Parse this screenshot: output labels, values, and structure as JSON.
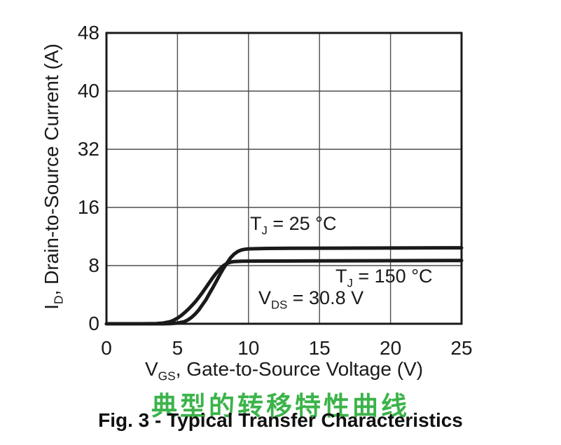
{
  "figure": {
    "caption_cn": "典型的转移特性曲线",
    "caption_en": "Fig. 3 - Typical Transfer Characteristics",
    "caption_cn_color": "#3cb34a"
  },
  "chart_data": {
    "type": "line",
    "title": "",
    "xlabel": {
      "base": "V",
      "sub": "GS",
      "rest": ", Gate-to-Source Voltage (V)"
    },
    "ylabel": {
      "base": "I",
      "sub": "D",
      "rest": ", Drain-to-Source Current (A)"
    },
    "xlim": [
      0,
      25
    ],
    "x_ticks": [
      0,
      5,
      10,
      15,
      20,
      25
    ],
    "y_tick_labels": [
      48,
      40,
      32,
      16,
      8,
      0
    ],
    "y_units_per_row": 8,
    "grid": true,
    "legend_position": "none",
    "line_color": "#1a1a1a",
    "grid_color": "#4d4d4d",
    "annotations": [
      {
        "base": "T",
        "sub": "J",
        "rest": " = 25 °C"
      },
      {
        "base": "T",
        "sub": "J",
        "rest": " = 150 °C"
      },
      {
        "base": "V",
        "sub": "DS",
        "rest": " = 30.8 V"
      }
    ],
    "series": [
      {
        "name": "TJ = 25 °C",
        "points": [
          [
            0,
            0
          ],
          [
            3,
            0
          ],
          [
            4,
            0
          ],
          [
            4.5,
            0.03
          ],
          [
            5,
            0.1
          ],
          [
            5.5,
            0.3
          ],
          [
            5.75,
            0.55
          ],
          [
            6,
            0.9
          ],
          [
            6.25,
            1.35
          ],
          [
            6.5,
            1.9
          ],
          [
            6.75,
            2.6
          ],
          [
            7,
            3.3
          ],
          [
            7.25,
            4.15
          ],
          [
            7.5,
            5.0
          ],
          [
            7.75,
            5.9
          ],
          [
            8,
            6.8
          ],
          [
            8.25,
            7.65
          ],
          [
            8.5,
            8.4
          ],
          [
            8.75,
            9.1
          ],
          [
            9,
            9.6
          ],
          [
            9.25,
            9.95
          ],
          [
            9.5,
            10.15
          ],
          [
            9.75,
            10.25
          ],
          [
            10,
            10.3
          ],
          [
            11,
            10.35
          ],
          [
            13,
            10.38
          ],
          [
            16,
            10.4
          ],
          [
            20,
            10.42
          ],
          [
            25,
            10.45
          ]
        ]
      },
      {
        "name": "TJ = 150 °C",
        "points": [
          [
            0,
            0
          ],
          [
            2.5,
            0
          ],
          [
            3.5,
            0.03
          ],
          [
            4,
            0.1
          ],
          [
            4.5,
            0.3
          ],
          [
            4.75,
            0.5
          ],
          [
            5,
            0.78
          ],
          [
            5.25,
            1.12
          ],
          [
            5.5,
            1.52
          ],
          [
            5.75,
            1.98
          ],
          [
            6,
            2.48
          ],
          [
            6.25,
            3.02
          ],
          [
            6.5,
            3.62
          ],
          [
            6.75,
            4.28
          ],
          [
            7,
            4.98
          ],
          [
            7.25,
            5.68
          ],
          [
            7.5,
            6.38
          ],
          [
            7.75,
            7.02
          ],
          [
            8,
            7.58
          ],
          [
            8.25,
            8.02
          ],
          [
            8.5,
            8.32
          ],
          [
            8.75,
            8.48
          ],
          [
            9,
            8.56
          ],
          [
            9.5,
            8.6
          ],
          [
            10,
            8.62
          ],
          [
            12,
            8.63
          ],
          [
            15,
            8.65
          ],
          [
            20,
            8.67
          ],
          [
            25,
            8.7
          ]
        ]
      }
    ]
  }
}
